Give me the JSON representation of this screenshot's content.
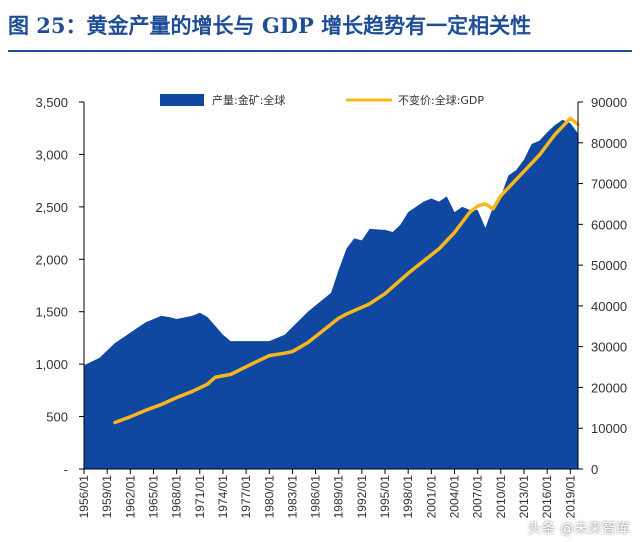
{
  "title": "图 25：黄金产量的增长与 GDP 增长趋势有一定相关性",
  "watermark": "头条 @未来智库",
  "colors": {
    "title": "#1f4e96",
    "area": "#0f47a1",
    "line": "#f6b81a",
    "axis": "#000000"
  },
  "chart_data": {
    "type": "area",
    "title": "",
    "xlabel": "",
    "ylabel": "",
    "legend_position": "top",
    "grid": false,
    "x_ticks": [
      "1956/01",
      "1959/01",
      "1962/01",
      "1965/01",
      "1968/01",
      "1971/01",
      "1974/01",
      "1977/01",
      "1980/01",
      "1983/01",
      "1986/01",
      "1989/01",
      "1992/01",
      "1995/01",
      "1998/01",
      "2001/01",
      "2004/01",
      "2007/01",
      "2010/01",
      "2013/01",
      "2016/01",
      "2019/01"
    ],
    "y_left": {
      "range": [
        0,
        3500
      ],
      "ticks": [
        "-",
        "500",
        "1,000",
        "1,500",
        "2,000",
        "2,500",
        "3,000",
        "3,500"
      ]
    },
    "y_right": {
      "range": [
        0,
        90000
      ],
      "ticks": [
        "0",
        "10000",
        "20000",
        "30000",
        "40000",
        "50000",
        "60000",
        "70000",
        "80000",
        "90000"
      ]
    },
    "series": [
      {
        "name": "产量:金矿:全球",
        "axis": "left",
        "kind": "area",
        "x": [
          1956,
          1958,
          1960,
          1962,
          1964,
          1966,
          1967,
          1968,
          1970,
          1971,
          1972,
          1974,
          1975,
          1977,
          1980,
          1982,
          1985,
          1987,
          1988,
          1989,
          1990,
          1991,
          1992,
          1993,
          1995,
          1996,
          1997,
          1998,
          1999,
          2000,
          2001,
          2002,
          2003,
          2004,
          2005,
          2006,
          2007,
          2008,
          2009,
          2010,
          2011,
          2012,
          2013,
          2014,
          2015,
          2016,
          2017,
          2018,
          2019,
          2020
        ],
        "values": [
          990,
          1060,
          1200,
          1300,
          1400,
          1460,
          1450,
          1430,
          1460,
          1490,
          1450,
          1280,
          1220,
          1220,
          1220,
          1280,
          1500,
          1620,
          1680,
          1900,
          2100,
          2200,
          2180,
          2290,
          2280,
          2260,
          2330,
          2450,
          2500,
          2550,
          2580,
          2550,
          2600,
          2450,
          2500,
          2470,
          2470,
          2300,
          2500,
          2600,
          2800,
          2850,
          2950,
          3100,
          3130,
          3210,
          3280,
          3330,
          3300,
          3200
        ]
      },
      {
        "name": "不变价:全球:GDP",
        "axis": "right",
        "kind": "line",
        "x": [
          1960,
          1962,
          1964,
          1966,
          1968,
          1970,
          1972,
          1973,
          1975,
          1978,
          1980,
          1982,
          1983,
          1985,
          1987,
          1989,
          1990,
          1993,
          1995,
          1998,
          2000,
          2002,
          2004,
          2006,
          2007,
          2008,
          2009,
          2010,
          2011,
          2013,
          2015,
          2017,
          2019,
          2020
        ],
        "values": [
          11400,
          12800,
          14400,
          15800,
          17500,
          19000,
          20800,
          22500,
          23200,
          26000,
          27800,
          28400,
          28800,
          31000,
          34000,
          37000,
          38000,
          40500,
          43000,
          48000,
          51000,
          54000,
          58000,
          63000,
          64500,
          65000,
          63800,
          67000,
          69000,
          73000,
          77000,
          82000,
          86000,
          84500
        ]
      }
    ]
  }
}
